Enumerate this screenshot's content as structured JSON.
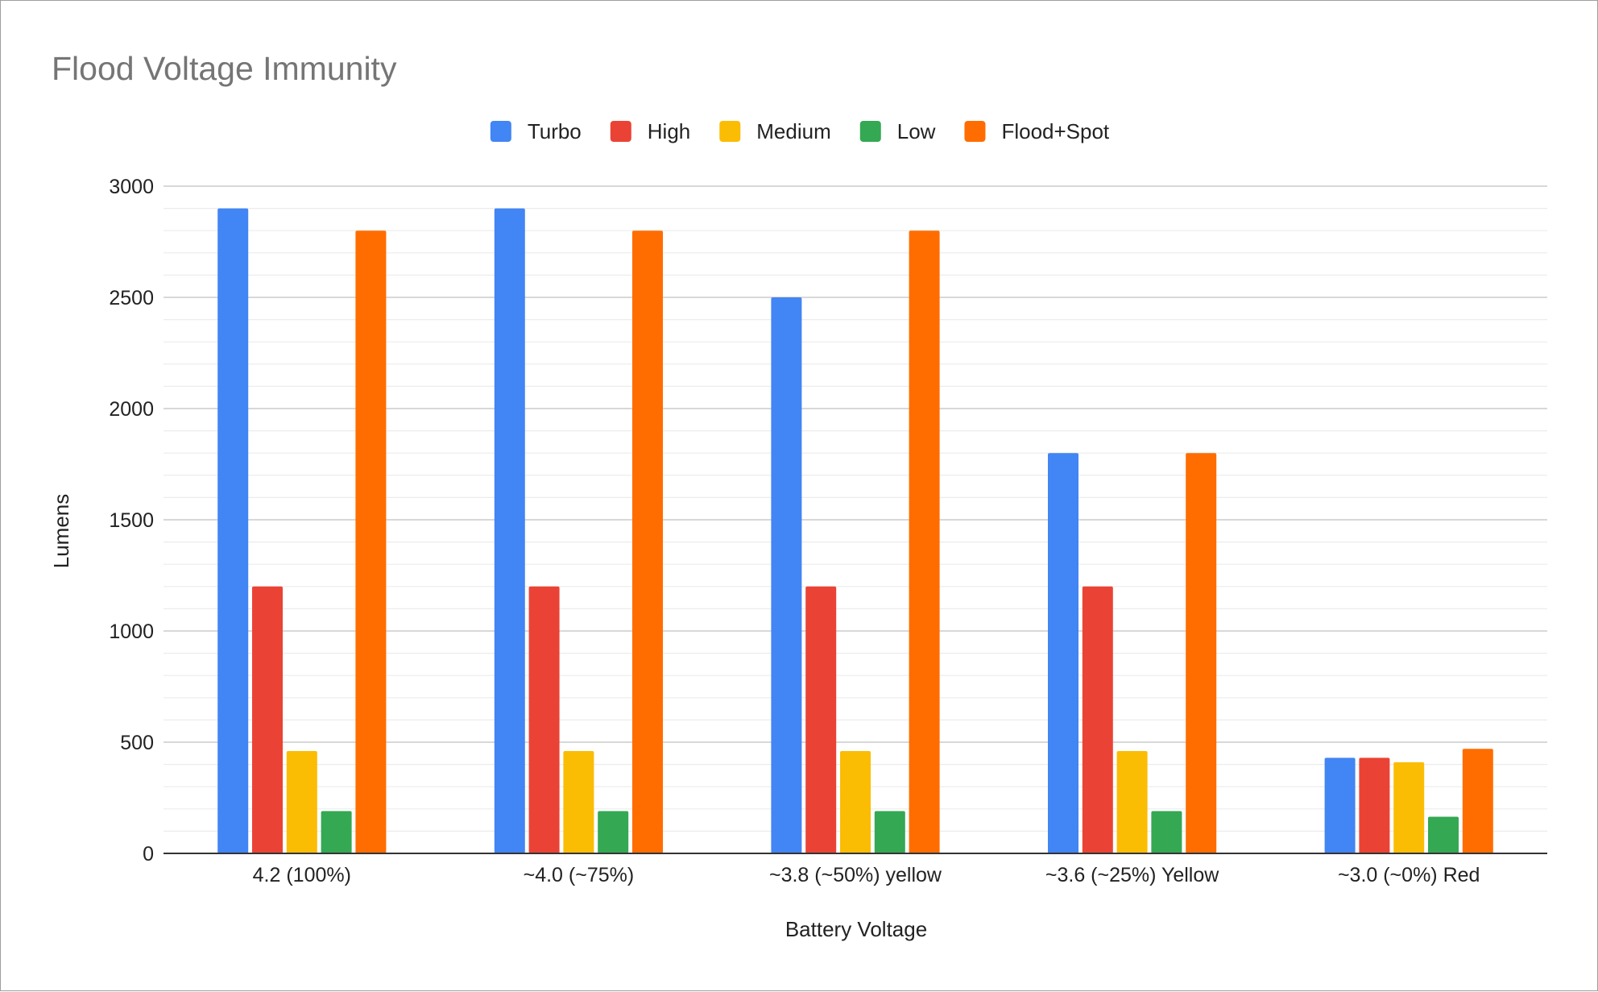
{
  "chart_data": {
    "type": "bar",
    "title": "Flood Voltage Immunity",
    "xlabel": "Battery Voltage",
    "ylabel": "Lumens",
    "ylim": [
      0,
      3000
    ],
    "yticks": [
      "0",
      "500",
      "1000",
      "1500",
      "2000",
      "2500",
      "3000"
    ],
    "grid": true,
    "legend_position": "top",
    "categories": [
      "4.2 (100%)",
      "~4.0 (~75%)",
      "~3.8 (~50%) yellow",
      "~3.6 (~25%) Yellow",
      "~3.0 (~0%) Red"
    ],
    "series": [
      {
        "name": "Turbo",
        "color": "#4285f4",
        "values": [
          2900,
          2900,
          2500,
          1800,
          430
        ]
      },
      {
        "name": "High",
        "color": "#ea4335",
        "values": [
          1200,
          1200,
          1200,
          1200,
          430
        ]
      },
      {
        "name": "Medium",
        "color": "#fbbc04",
        "values": [
          460,
          460,
          460,
          460,
          410
        ]
      },
      {
        "name": "Low",
        "color": "#34a853",
        "values": [
          190,
          190,
          190,
          190,
          165
        ]
      },
      {
        "name": "Flood+Spot",
        "color": "#ff6d01",
        "values": [
          2800,
          2800,
          2800,
          1800,
          470
        ]
      }
    ]
  }
}
